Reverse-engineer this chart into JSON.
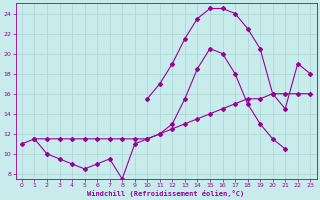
{
  "xlabel": "Windchill (Refroidissement éolien,°C)",
  "xlim": [
    -0.5,
    23.5
  ],
  "ylim": [
    7.5,
    25.0
  ],
  "xticks": [
    0,
    1,
    2,
    3,
    4,
    5,
    6,
    7,
    8,
    9,
    10,
    11,
    12,
    13,
    14,
    15,
    16,
    17,
    18,
    19,
    20,
    21,
    22,
    23
  ],
  "yticks": [
    8,
    10,
    12,
    14,
    16,
    18,
    20,
    22,
    24
  ],
  "bg_color": "#c8ecec",
  "grid_color": "#b0d8d8",
  "line_color": "#990099",
  "curve1_x": [
    0,
    1,
    2,
    3,
    4,
    5,
    6,
    7,
    8,
    9,
    10,
    11,
    12,
    13,
    14,
    15,
    16,
    17,
    18,
    19,
    20,
    21,
    22,
    23
  ],
  "curve1_y": [
    11.0,
    11.5,
    11.5,
    11.5,
    11.5,
    11.5,
    11.5,
    11.5,
    11.5,
    11.5,
    11.5,
    12.0,
    12.5,
    13.0,
    13.5,
    14.0,
    14.5,
    15.0,
    15.5,
    15.5,
    16.0,
    16.0,
    16.0,
    16.0
  ],
  "curve2_x": [
    1,
    2,
    3,
    4,
    5,
    6,
    7,
    8,
    9,
    10,
    11,
    12,
    13,
    14,
    15,
    16,
    17,
    18,
    19,
    20,
    21
  ],
  "curve2_y": [
    11.5,
    10.0,
    9.5,
    9.0,
    8.5,
    9.0,
    9.5,
    7.5,
    11.0,
    11.5,
    12.0,
    13.0,
    15.5,
    18.5,
    20.5,
    20.0,
    18.0,
    15.0,
    13.0,
    11.5,
    10.5
  ],
  "curve3_x": [
    10,
    11,
    12,
    13,
    14,
    15,
    16,
    17,
    18,
    19,
    20,
    21,
    22,
    23
  ],
  "curve3_y": [
    15.5,
    17.0,
    19.0,
    21.5,
    23.5,
    24.5,
    24.5,
    24.0,
    22.5,
    20.5,
    16.0,
    14.5,
    19.0,
    18.0
  ]
}
